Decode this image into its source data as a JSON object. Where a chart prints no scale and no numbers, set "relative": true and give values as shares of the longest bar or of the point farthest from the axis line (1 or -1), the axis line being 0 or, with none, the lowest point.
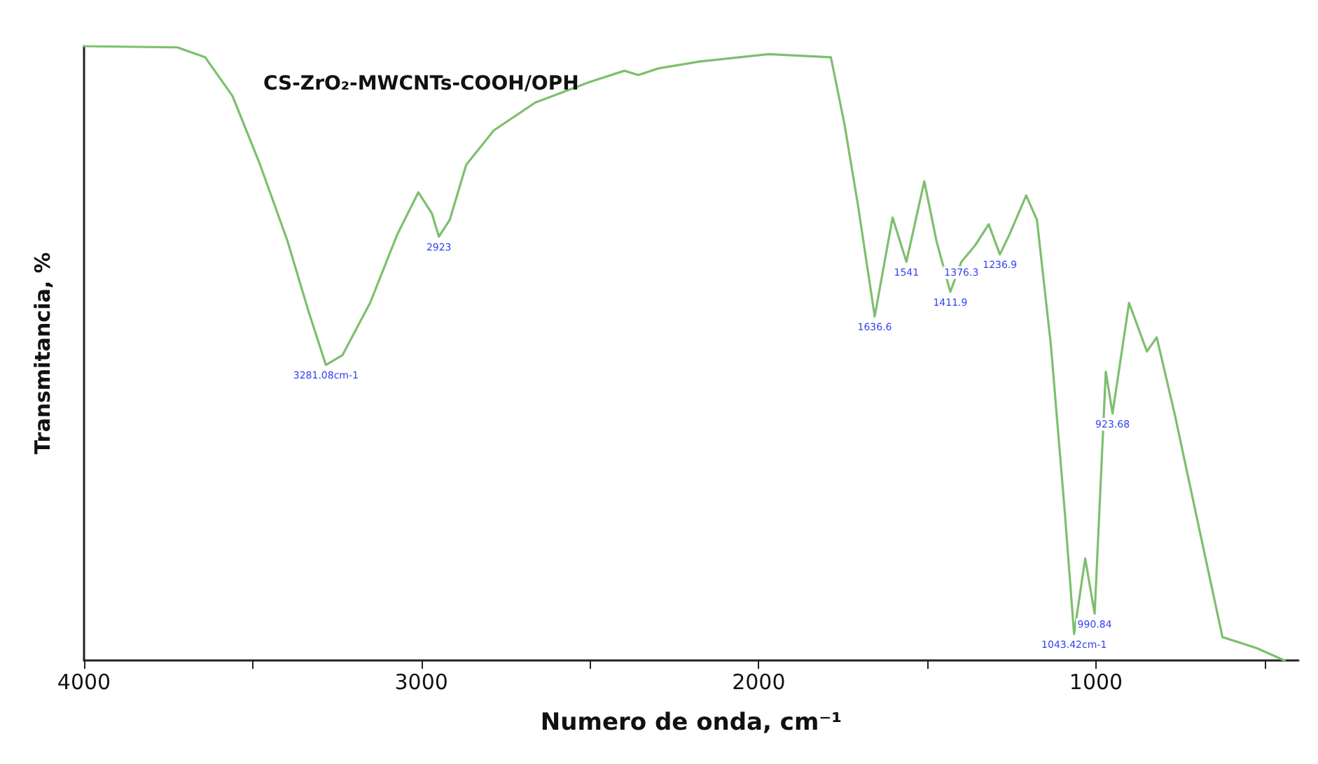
{
  "chart_data": {
    "type": "line",
    "title": "CS-ZrO₂-MWCNTs-COOH/OPH",
    "xlabel": "Numero de onda, cm⁻¹",
    "ylabel": "Transmitancia, %",
    "relative": true,
    "grid": false,
    "marker": "none",
    "xlim": [
      4000,
      400
    ],
    "xticks": [
      4000,
      {
        "value": 3500,
        "label": null
      },
      3000,
      {
        "value": 2500,
        "label": null
      },
      2000,
      {
        "value": 1500,
        "label": null
      },
      1000,
      {
        "value": 500,
        "label": null
      }
    ],
    "x": [
      4000,
      3723,
      3641,
      3560,
      3478,
      3397,
      3336,
      3283,
      3234,
      3152,
      3071,
      3009,
      2969,
      2948,
      2916,
      2867,
      2785,
      2663,
      2500,
      2398,
      2357,
      2296,
      2174,
      1970,
      1786,
      1746,
      1705,
      1656,
      1603,
      1562,
      1509,
      1473,
      1432,
      1399,
      1358,
      1318,
      1285,
      1256,
      1207,
      1175,
      1134,
      1093,
      1065,
      1032,
      1004,
      971,
      951,
      902,
      849,
      820,
      767,
      706,
      625,
      523,
      441
    ],
    "series": [
      {
        "color": "#7dbf6e",
        "values": [
          1.0,
          0.998,
          0.982,
          0.919,
          0.807,
          0.683,
          0.571,
          0.481,
          0.497,
          0.582,
          0.694,
          0.762,
          0.728,
          0.69,
          0.717,
          0.807,
          0.863,
          0.908,
          0.942,
          0.96,
          0.953,
          0.964,
          0.975,
          0.987,
          0.982,
          0.874,
          0.739,
          0.56,
          0.721,
          0.649,
          0.78,
          0.683,
          0.6,
          0.649,
          0.676,
          0.71,
          0.661,
          0.694,
          0.757,
          0.717,
          0.515,
          0.245,
          0.043,
          0.166,
          0.076,
          0.47,
          0.402,
          0.582,
          0.503,
          0.526,
          0.402,
          0.245,
          0.038,
          0.02,
          0.0
        ]
      }
    ],
    "annotations": [
      {
        "text": "3281.08cm-1",
        "x": 3283,
        "y": 0.481
      },
      {
        "text": "2923",
        "x": 2948,
        "y": 0.69
      },
      {
        "text": "1636.6",
        "x": 1656,
        "y": 0.56
      },
      {
        "text": "1541",
        "x": 1562,
        "y": 0.649
      },
      {
        "text": "1411.9",
        "x": 1432,
        "y": 0.6
      },
      {
        "text": "1376.3",
        "x": 1399,
        "y": 0.649
      },
      {
        "text": "1236.9",
        "x": 1285,
        "y": 0.661
      },
      {
        "text": "1043.42cm-1",
        "x": 1065,
        "y": 0.043
      },
      {
        "text": "990.84",
        "x": 1004,
        "y": 0.076
      },
      {
        "text": "923.68",
        "x": 951,
        "y": 0.402
      }
    ]
  }
}
